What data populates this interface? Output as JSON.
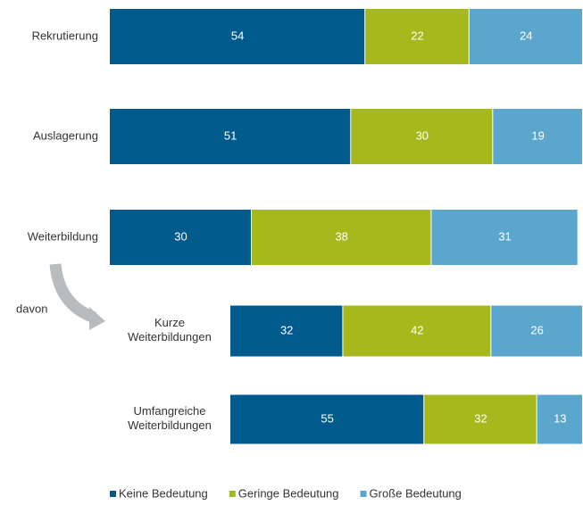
{
  "chart_data": {
    "type": "bar",
    "orientation": "horizontal",
    "stacked": true,
    "categories": [
      "Rekrutierung",
      "Auslagerung",
      "Weiterbildung",
      "Kurze Weiterbildungen",
      "Umfangreiche Weiterbildungen"
    ],
    "series": [
      {
        "name": "Keine Bedeutung",
        "color": "#005b8c",
        "values": [
          54,
          51,
          30,
          32,
          55
        ]
      },
      {
        "name": "Geringe Bedeutung",
        "color": "#a6b91c",
        "values": [
          22,
          30,
          38,
          42,
          32
        ]
      },
      {
        "name": "Große Bedeutung",
        "color": "#5aa6cc",
        "values": [
          24,
          19,
          31,
          26,
          13
        ]
      }
    ],
    "annotations": [
      "davon"
    ],
    "legend": "bottom"
  }
}
